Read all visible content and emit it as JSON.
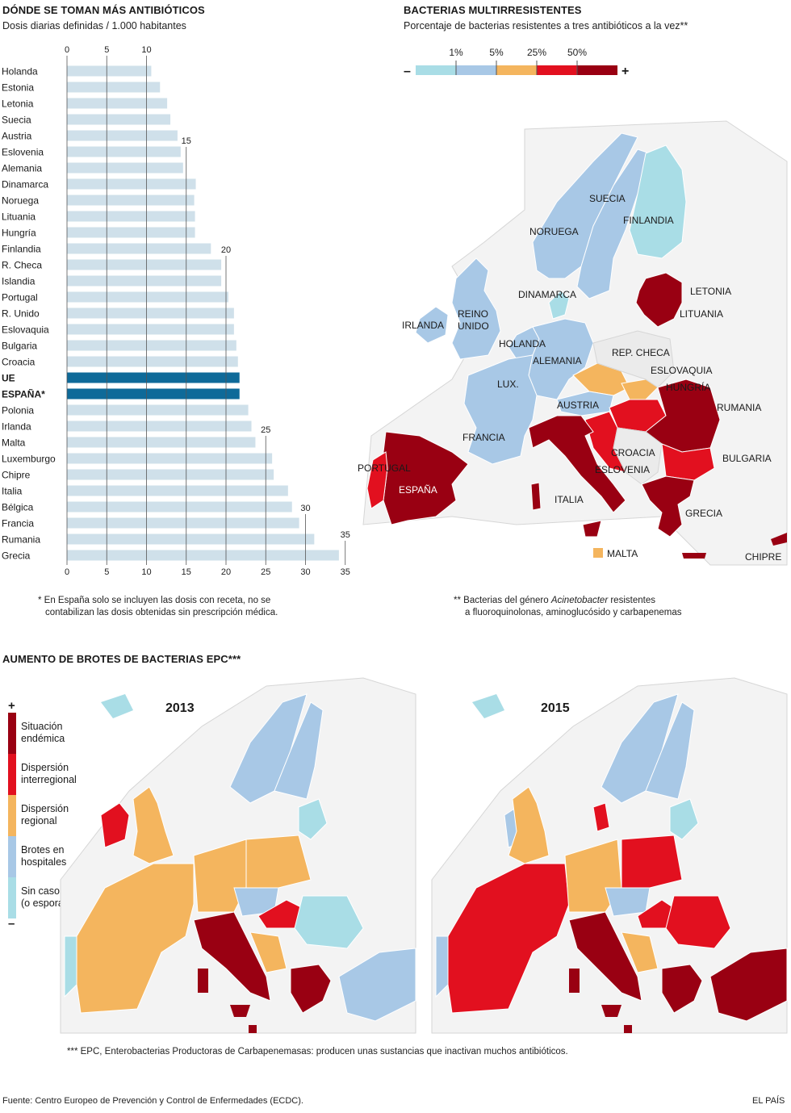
{
  "bar_section": {
    "title": "DÓNDE SE TOMAN MÁS ANTIBIÓTICOS",
    "subtitle": "Dosis diarias definidas / 1.000 habitantes",
    "footnote_line1": "* En España solo se incluyen las dosis con receta, no se",
    "footnote_line2": "contabilizan las dosis obtenidas sin prescripción médica."
  },
  "map_section": {
    "title": "BACTERIAS MULTIRRESISTENTES",
    "subtitle": "Porcentaje de bacterias resistentes a tres antibióticos a la vez**",
    "legend_minus": "–",
    "legend_plus": "+",
    "legend_ticks": [
      "1%",
      "5%",
      "25%",
      "50%"
    ],
    "footnote_prefix": "** Bacterias del género ",
    "footnote_italic": "Acinetobacter",
    "footnote_suffix": " resistentes",
    "footnote_line2": "a fluoroquinolonas, aminoglucósido y carbapenemas",
    "labels": {
      "suecia": "SUECIA",
      "finlandia": "FINLANDIA",
      "noruega": "NORUEGA",
      "letonia": "LETONIA",
      "lituania": "LITUANIA",
      "dinamarca": "DINAMARCA",
      "irlanda": "IRLANDA",
      "reino": "REINO",
      "unido": "UNIDO",
      "holanda": "HOLANDA",
      "alemania": "ALEMANIA",
      "rep_checa": "REP. CHECA",
      "eslovaquia": "ESLOVAQUIA",
      "lux": "LUX.",
      "hungria": "HUNGRÍA",
      "austria": "AUSTRIA",
      "rumania": "RUMANIA",
      "francia": "FRANCIA",
      "croacia": "CROACIA",
      "eslovenia": "ESLOVENIA",
      "bulgaria": "BULGARIA",
      "portugal": "PORTUGAL",
      "espana": "ESPAÑA",
      "italia": "ITALIA",
      "grecia": "GRECIA",
      "malta": "MALTA",
      "chipre": "CHIPRE"
    }
  },
  "outbreak_section": {
    "title": "AUMENTO DE BROTES DE BACTERIAS EPC***",
    "year_left": "2013",
    "year_right": "2015",
    "legend_plus": "+",
    "legend_minus": "–",
    "legend": [
      {
        "line1": "Situación",
        "line2": "endémica"
      },
      {
        "line1": "Dispersión",
        "line2": "interregional"
      },
      {
        "line1": "Dispersión",
        "line2": "regional"
      },
      {
        "line1": "Brotes en",
        "line2": "hospitales"
      },
      {
        "line1": "Sin casos",
        "line2": "(o esporádicos)"
      }
    ],
    "footnote": "*** EPC, Enterobacterias Productoras de Carbapenemasas: producen unas sustancias que inactivan muchos antibióticos."
  },
  "source": "Fuente: Centro Europeo de Prevención y Control de Enfermedades (ECDC).",
  "brand": "EL PAÍS",
  "colors": {
    "bar": "#cfe0ea",
    "bar_highlight": "#0e6a99",
    "c1": "#a9dde6",
    "c2": "#a8c8e6",
    "c3": "#f4b55e",
    "c4": "#e2101f",
    "c5": "#990012",
    "land": "#ebebeb"
  },
  "chart_data": {
    "type": "bar",
    "orientation": "horizontal",
    "title": "DÓNDE SE TOMAN MÁS ANTIBIÓTICOS",
    "xlabel": "Dosis diarias definidas / 1.000 habitantes",
    "xlim": [
      0,
      35
    ],
    "xticks": [
      0,
      5,
      10,
      15,
      20,
      25,
      30,
      35
    ],
    "xtick_labels": [
      "0",
      "5",
      "10",
      "15",
      "20",
      "25",
      "30",
      "35"
    ],
    "highlight": [
      "UE",
      "ESPAÑA*"
    ],
    "categories": [
      "Holanda",
      "Estonia",
      "Letonia",
      "Suecia",
      "Austria",
      "Eslovenia",
      "Alemania",
      "Dinamarca",
      "Noruega",
      "Lituania",
      "Hungría",
      "Finlandia",
      "R. Checa",
      "Islandia",
      "Portugal",
      "R. Unido",
      "Eslovaquia",
      "Bulgaria",
      "Croacia",
      "UE",
      "ESPAÑA*",
      "Polonia",
      "Irlanda",
      "Malta",
      "Luxemburgo",
      "Chipre",
      "Italia",
      "Bélgica",
      "Francia",
      "Rumania",
      "Grecia"
    ],
    "values": [
      10.6,
      11.7,
      12.6,
      13.0,
      13.9,
      14.3,
      14.6,
      16.2,
      16.0,
      16.1,
      16.1,
      18.1,
      19.4,
      19.4,
      20.3,
      21.0,
      21.0,
      21.3,
      21.5,
      21.7,
      21.7,
      22.8,
      23.2,
      23.7,
      25.8,
      26.0,
      27.8,
      28.3,
      29.2,
      31.1,
      34.2
    ]
  }
}
